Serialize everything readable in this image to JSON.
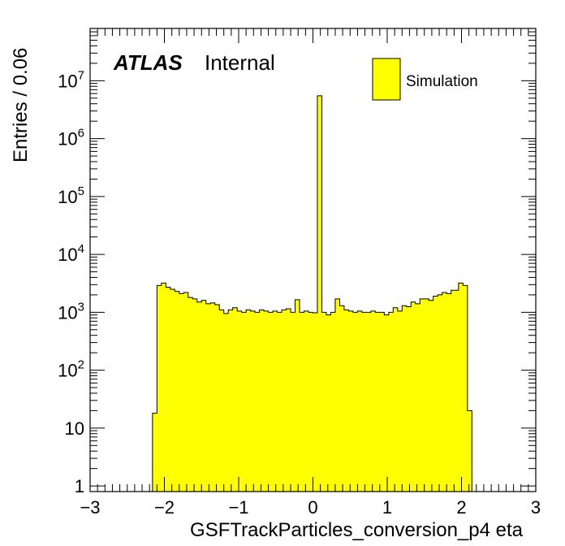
{
  "chart_data": {
    "type": "histogram",
    "title": "",
    "xlabel": "GSFTrackParticles_conversion_p4 eta",
    "ylabel": "Entries / 0.06",
    "xlim": [
      -3,
      3
    ],
    "ylim": [
      0.8,
      80000000
    ],
    "y_scale": "log",
    "x_ticks": [
      -3,
      -2,
      -1,
      0,
      1,
      2,
      3
    ],
    "x_tick_labels": [
      "−3",
      "−2",
      "−1",
      "0",
      "1",
      "2",
      "3"
    ],
    "y_ticks": [
      1,
      10,
      100,
      1000,
      10000,
      100000,
      1000000,
      10000000
    ],
    "y_tick_labels": [
      {
        "base": "1",
        "exp": ""
      },
      {
        "base": "10",
        "exp": ""
      },
      {
        "base": "10",
        "exp": "2"
      },
      {
        "base": "10",
        "exp": "3"
      },
      {
        "base": "10",
        "exp": "4"
      },
      {
        "base": "10",
        "exp": "5"
      },
      {
        "base": "10",
        "exp": "6"
      },
      {
        "base": "10",
        "exp": "7"
      }
    ],
    "bin_width": 0.06,
    "bin_low_edges": [
      -2.22,
      -2.16,
      -2.1,
      -2.04,
      -1.98,
      -1.92,
      -1.86,
      -1.8,
      -1.74,
      -1.68,
      -1.62,
      -1.56,
      -1.5,
      -1.44,
      -1.38,
      -1.32,
      -1.26,
      -1.2,
      -1.14,
      -1.08,
      -1.02,
      -0.96,
      -0.9,
      -0.84,
      -0.78,
      -0.72,
      -0.66,
      -0.6,
      -0.54,
      -0.48,
      -0.42,
      -0.36,
      -0.3,
      -0.24,
      -0.18,
      -0.12,
      -0.06,
      0.0,
      0.06,
      0.12,
      0.18,
      0.24,
      0.3,
      0.36,
      0.42,
      0.48,
      0.54,
      0.6,
      0.66,
      0.72,
      0.78,
      0.84,
      0.9,
      0.96,
      1.02,
      1.08,
      1.14,
      1.2,
      1.26,
      1.32,
      1.38,
      1.44,
      1.5,
      1.56,
      1.62,
      1.68,
      1.74,
      1.8,
      1.86,
      1.9,
      1.96,
      2.02,
      2.08,
      2.14
    ],
    "series": [
      {
        "name": "Simulation",
        "values": [
          0,
          18,
          2900,
          3200,
          2700,
          2500,
          2300,
          2100,
          2200,
          1800,
          1700,
          1500,
          1600,
          1400,
          1450,
          1350,
          1100,
          950,
          1100,
          1200,
          1050,
          1000,
          1100,
          1050,
          1000,
          1100,
          1050,
          1000,
          1050,
          1000,
          1100,
          1150,
          1000,
          1650,
          1000,
          1050,
          1000,
          980,
          5500000,
          1000,
          900,
          1000,
          1700,
          1300,
          1100,
          1050,
          1000,
          1050,
          1000,
          1000,
          1050,
          1000,
          1000,
          900,
          1000,
          1200,
          1050,
          1300,
          1250,
          1500,
          1400,
          1700,
          1700,
          1600,
          1900,
          2000,
          2200,
          2100,
          2400,
          2400,
          3200,
          2900,
          20,
          0
        ]
      }
    ],
    "colors": {
      "fill": "#ffff00",
      "line": "#000000"
    },
    "legend": {
      "position": "top-right",
      "entries": [
        "Simulation"
      ]
    },
    "grid": false
  },
  "annotations": {
    "atlas_label": "ATLAS",
    "atlas_sublabel": "Internal"
  }
}
